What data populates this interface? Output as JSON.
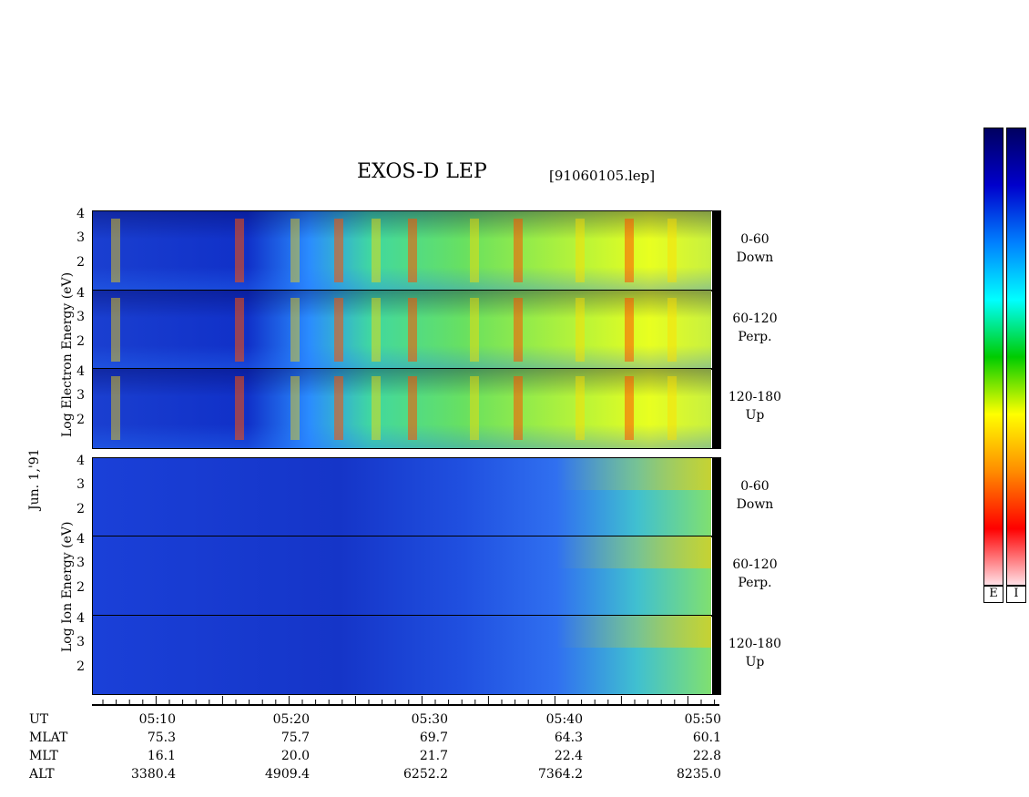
{
  "title": "EXOS-D LEP",
  "file": "[91060105.lep]",
  "date_label": "Jun. 1,'91",
  "electron_ylabel": "Log Electron Energy (eV)",
  "ion_ylabel": "Log Ion Energy (eV)",
  "y_ticks": [
    "4",
    "3",
    "2"
  ],
  "panels": [
    {
      "pitch": "0-60",
      "dir": "Down"
    },
    {
      "pitch": "60-120",
      "dir": "Perp."
    },
    {
      "pitch": "120-180",
      "dir": "Up"
    },
    {
      "pitch": "0-60",
      "dir": "Down"
    },
    {
      "pitch": "60-120",
      "dir": "Perp."
    },
    {
      "pitch": "120-180",
      "dir": "Up"
    }
  ],
  "rows": {
    "labels": [
      "UT",
      "MLAT",
      "MLT",
      "ALT"
    ],
    "times": [
      "05:10",
      "05:20",
      "05:30",
      "05:40",
      "05:50"
    ],
    "MLAT": [
      "75.3",
      "75.7",
      "69.7",
      "64.3",
      "60.1"
    ],
    "MLT": [
      "16.1",
      "20.0",
      "21.7",
      "22.4",
      "22.8"
    ],
    "ALT": [
      "3380.4",
      "4909.4",
      "6252.2",
      "7364.2",
      "8235.0"
    ]
  },
  "colorbar": {
    "labels": [
      "E",
      "I"
    ]
  },
  "colors": {
    "background": "#ffffff",
    "scale": [
      "#ffe4ea",
      "#ff0000",
      "#ff8c00",
      "#ffff00",
      "#00cc00",
      "#00ffff",
      "#0080ff",
      "#0000cc",
      "#000060"
    ]
  },
  "chart_data": {
    "type": "heatmap",
    "title": "EXOS-D LEP",
    "xlabel": "UT",
    "x_ticks": [
      "05:10",
      "05:20",
      "05:30",
      "05:40",
      "05:50"
    ],
    "ylabel": "Log Energy (eV)",
    "ylim": [
      1,
      4.2
    ],
    "y_ticks": [
      2,
      3,
      4
    ],
    "panels": [
      "Electron 0-60 Down",
      "Electron 60-120 Perp.",
      "Electron 120-180 Up",
      "Ion 0-60 Down",
      "Ion 60-120 Perp.",
      "Ion 120-180 Up"
    ],
    "grid": false
  }
}
